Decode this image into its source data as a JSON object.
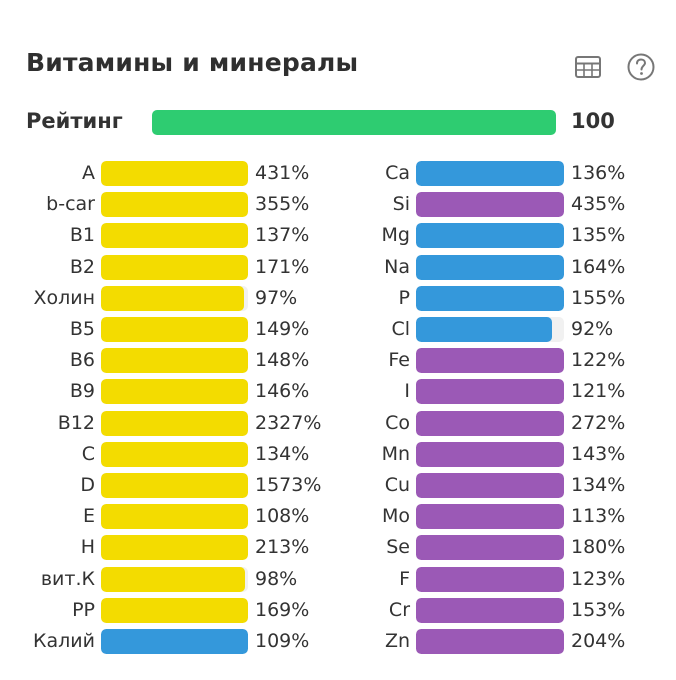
{
  "header": {
    "title": "Витамины и минералы",
    "table_icon": "table-icon",
    "help_icon": "help-icon"
  },
  "rating": {
    "label": "Рейтинг",
    "value": 100,
    "value_text": "100",
    "color": "#2ecc71"
  },
  "colors": {
    "yellow": "#f3dc00",
    "blue": "#3498db",
    "purple": "#9b59b6",
    "track": "#f1f1f1"
  },
  "chart_data": {
    "type": "bar",
    "orientation": "horizontal",
    "max_percent": 100,
    "vitamins": [
      {
        "label": "A",
        "value": 431,
        "text": "431%",
        "color": "yellow"
      },
      {
        "label": "b-car",
        "value": 355,
        "text": "355%",
        "color": "yellow"
      },
      {
        "label": "B1",
        "value": 137,
        "text": "137%",
        "color": "yellow"
      },
      {
        "label": "B2",
        "value": 171,
        "text": "171%",
        "color": "yellow"
      },
      {
        "label": "Холин",
        "value": 97,
        "text": "97%",
        "color": "yellow"
      },
      {
        "label": "B5",
        "value": 149,
        "text": "149%",
        "color": "yellow"
      },
      {
        "label": "B6",
        "value": 148,
        "text": "148%",
        "color": "yellow"
      },
      {
        "label": "B9",
        "value": 146,
        "text": "146%",
        "color": "yellow"
      },
      {
        "label": "B12",
        "value": 2327,
        "text": "2327%",
        "color": "yellow"
      },
      {
        "label": "C",
        "value": 134,
        "text": "134%",
        "color": "yellow"
      },
      {
        "label": "D",
        "value": 1573,
        "text": "1573%",
        "color": "yellow"
      },
      {
        "label": "E",
        "value": 108,
        "text": "108%",
        "color": "yellow"
      },
      {
        "label": "H",
        "value": 213,
        "text": "213%",
        "color": "yellow"
      },
      {
        "label": "вит.К",
        "value": 98,
        "text": "98%",
        "color": "yellow"
      },
      {
        "label": "PP",
        "value": 169,
        "text": "169%",
        "color": "yellow"
      },
      {
        "label": "Калий",
        "value": 109,
        "text": "109%",
        "color": "blue"
      }
    ],
    "minerals": [
      {
        "label": "Ca",
        "value": 136,
        "text": "136%",
        "color": "blue"
      },
      {
        "label": "Si",
        "value": 435,
        "text": "435%",
        "color": "purple"
      },
      {
        "label": "Mg",
        "value": 135,
        "text": "135%",
        "color": "blue"
      },
      {
        "label": "Na",
        "value": 164,
        "text": "164%",
        "color": "blue"
      },
      {
        "label": "P",
        "value": 155,
        "text": "155%",
        "color": "blue"
      },
      {
        "label": "Cl",
        "value": 92,
        "text": "92%",
        "color": "blue"
      },
      {
        "label": "Fe",
        "value": 122,
        "text": "122%",
        "color": "purple"
      },
      {
        "label": "I",
        "value": 121,
        "text": "121%",
        "color": "purple"
      },
      {
        "label": "Co",
        "value": 272,
        "text": "272%",
        "color": "purple"
      },
      {
        "label": "Mn",
        "value": 143,
        "text": "143%",
        "color": "purple"
      },
      {
        "label": "Cu",
        "value": 134,
        "text": "134%",
        "color": "purple"
      },
      {
        "label": "Mo",
        "value": 113,
        "text": "113%",
        "color": "purple"
      },
      {
        "label": "Se",
        "value": 180,
        "text": "180%",
        "color": "purple"
      },
      {
        "label": "F",
        "value": 123,
        "text": "123%",
        "color": "purple"
      },
      {
        "label": "Cr",
        "value": 153,
        "text": "153%",
        "color": "purple"
      },
      {
        "label": "Zn",
        "value": 204,
        "text": "204%",
        "color": "purple"
      }
    ]
  }
}
